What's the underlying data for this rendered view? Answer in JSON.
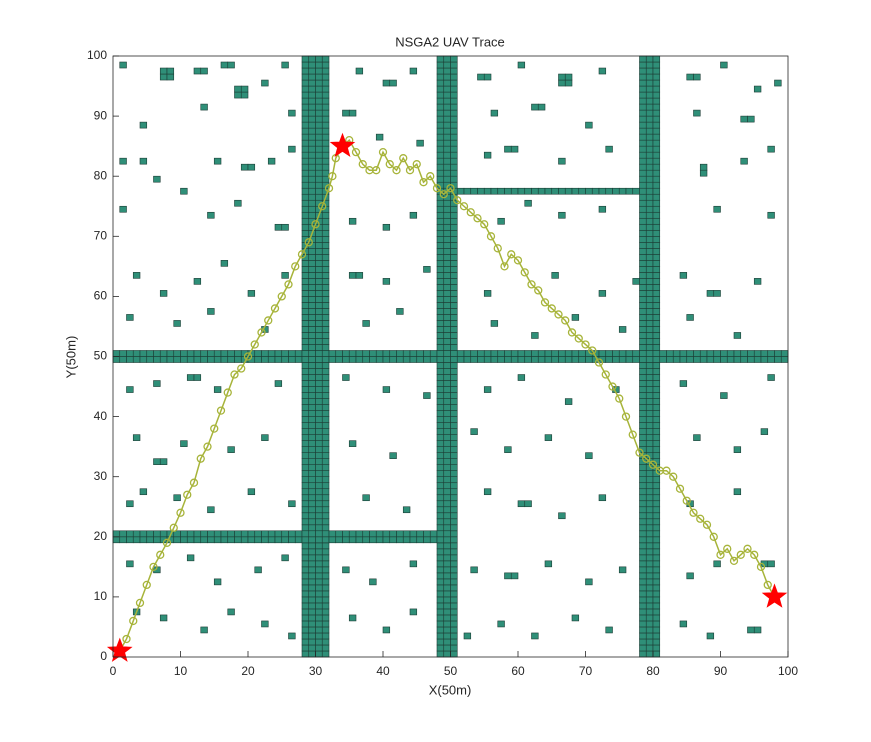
{
  "chart_data": {
    "type": "trace",
    "title": "NSGA2 UAV Trace",
    "x_label": "X(50m)",
    "y_label": "Y(50m)",
    "xlim": [
      0,
      100
    ],
    "ylim": [
      0,
      100
    ],
    "xticks": [
      0,
      10,
      20,
      30,
      40,
      50,
      60,
      70,
      80,
      90,
      100
    ],
    "yticks": [
      0,
      10,
      20,
      30,
      40,
      50,
      60,
      70,
      80,
      90,
      100
    ],
    "obstacles": {
      "color": "#2f8f78",
      "edge_color": "#1d3d35",
      "cells": [
        [
          28,
          0,
          4,
          100
        ],
        [
          48,
          0,
          3,
          100
        ],
        [
          78,
          0,
          3,
          100
        ],
        [
          0,
          49,
          100,
          2
        ],
        [
          0,
          19,
          50,
          2
        ],
        [
          51,
          77,
          27,
          1
        ],
        [
          1,
          98,
          1,
          1
        ],
        [
          7,
          96,
          2,
          2
        ],
        [
          12,
          97,
          2,
          1
        ],
        [
          16,
          98,
          2,
          1
        ],
        [
          18,
          93,
          2,
          2
        ],
        [
          22,
          95,
          1,
          1
        ],
        [
          25,
          98,
          1,
          1
        ],
        [
          36,
          97,
          1,
          1
        ],
        [
          40,
          95,
          2,
          1
        ],
        [
          44,
          97,
          1,
          1
        ],
        [
          54,
          96,
          2,
          1
        ],
        [
          60,
          98,
          1,
          1
        ],
        [
          66,
          95,
          2,
          2
        ],
        [
          72,
          97,
          1,
          1
        ],
        [
          85,
          96,
          2,
          1
        ],
        [
          90,
          98,
          1,
          1
        ],
        [
          95,
          94,
          1,
          1
        ],
        [
          98,
          95,
          1,
          1
        ],
        [
          13,
          91,
          1,
          1
        ],
        [
          4,
          88,
          1,
          1
        ],
        [
          26,
          90,
          1,
          1
        ],
        [
          34,
          90,
          2,
          1
        ],
        [
          56,
          90,
          1,
          1
        ],
        [
          62,
          91,
          2,
          1
        ],
        [
          70,
          88,
          1,
          1
        ],
        [
          86,
          90,
          1,
          1
        ],
        [
          93,
          89,
          2,
          1
        ],
        [
          1,
          82,
          1,
          1
        ],
        [
          4,
          82,
          1,
          1
        ],
        [
          15,
          82,
          1,
          1
        ],
        [
          19,
          81,
          2,
          1
        ],
        [
          23,
          82,
          1,
          1
        ],
        [
          26,
          84,
          1,
          1
        ],
        [
          39,
          86,
          1,
          1
        ],
        [
          45,
          85,
          1,
          1
        ],
        [
          55,
          83,
          1,
          1
        ],
        [
          58,
          84,
          2,
          1
        ],
        [
          66,
          82,
          1,
          1
        ],
        [
          73,
          84,
          1,
          1
        ],
        [
          87,
          80,
          1,
          2
        ],
        [
          93,
          82,
          1,
          1
        ],
        [
          97,
          84,
          1,
          1
        ],
        [
          1,
          74,
          1,
          1
        ],
        [
          6,
          79,
          1,
          1
        ],
        [
          10,
          77,
          1,
          1
        ],
        [
          14,
          73,
          1,
          1
        ],
        [
          18,
          75,
          1,
          1
        ],
        [
          24,
          71,
          2,
          1
        ],
        [
          35,
          72,
          1,
          1
        ],
        [
          40,
          71,
          1,
          1
        ],
        [
          44,
          73,
          1,
          1
        ],
        [
          57,
          72,
          1,
          1
        ],
        [
          61,
          75,
          1,
          1
        ],
        [
          66,
          73,
          1,
          1
        ],
        [
          72,
          74,
          1,
          1
        ],
        [
          89,
          74,
          1,
          1
        ],
        [
          97,
          73,
          1,
          1
        ],
        [
          3,
          63,
          1,
          1
        ],
        [
          7,
          60,
          1,
          1
        ],
        [
          12,
          62,
          1,
          1
        ],
        [
          16,
          65,
          1,
          1
        ],
        [
          20,
          60,
          1,
          1
        ],
        [
          25,
          63,
          1,
          1
        ],
        [
          35,
          63,
          2,
          1
        ],
        [
          40,
          62,
          1,
          1
        ],
        [
          46,
          64,
          1,
          1
        ],
        [
          55,
          60,
          1,
          1
        ],
        [
          65,
          63,
          1,
          1
        ],
        [
          72,
          60,
          1,
          1
        ],
        [
          77,
          62,
          1,
          1
        ],
        [
          84,
          63,
          1,
          1
        ],
        [
          88,
          60,
          2,
          1
        ],
        [
          95,
          62,
          1,
          1
        ],
        [
          2,
          56,
          1,
          1
        ],
        [
          9,
          55,
          1,
          1
        ],
        [
          14,
          57,
          1,
          1
        ],
        [
          22,
          54,
          1,
          1
        ],
        [
          37,
          55,
          1,
          1
        ],
        [
          42,
          57,
          1,
          1
        ],
        [
          56,
          55,
          1,
          1
        ],
        [
          62,
          53,
          1,
          1
        ],
        [
          68,
          56,
          1,
          1
        ],
        [
          75,
          54,
          1,
          1
        ],
        [
          85,
          56,
          1,
          1
        ],
        [
          92,
          53,
          1,
          1
        ],
        [
          2,
          44,
          1,
          1
        ],
        [
          6,
          45,
          1,
          1
        ],
        [
          11,
          46,
          2,
          1
        ],
        [
          15,
          44,
          1,
          1
        ],
        [
          24,
          45,
          1,
          1
        ],
        [
          34,
          46,
          1,
          1
        ],
        [
          40,
          44,
          1,
          1
        ],
        [
          46,
          43,
          1,
          1
        ],
        [
          55,
          44,
          1,
          1
        ],
        [
          60,
          46,
          1,
          1
        ],
        [
          67,
          42,
          1,
          1
        ],
        [
          74,
          44,
          1,
          1
        ],
        [
          84,
          45,
          1,
          1
        ],
        [
          90,
          43,
          1,
          1
        ],
        [
          97,
          46,
          1,
          1
        ],
        [
          3,
          36,
          1,
          1
        ],
        [
          6,
          32,
          2,
          1
        ],
        [
          10,
          35,
          1,
          1
        ],
        [
          17,
          34,
          1,
          1
        ],
        [
          22,
          36,
          1,
          1
        ],
        [
          35,
          35,
          1,
          1
        ],
        [
          41,
          33,
          1,
          1
        ],
        [
          53,
          37,
          1,
          1
        ],
        [
          58,
          34,
          1,
          1
        ],
        [
          64,
          36,
          1,
          1
        ],
        [
          70,
          33,
          1,
          1
        ],
        [
          86,
          36,
          1,
          1
        ],
        [
          92,
          34,
          1,
          1
        ],
        [
          96,
          37,
          1,
          1
        ],
        [
          2,
          25,
          1,
          1
        ],
        [
          4,
          27,
          1,
          1
        ],
        [
          9,
          26,
          1,
          1
        ],
        [
          14,
          24,
          1,
          1
        ],
        [
          20,
          27,
          1,
          1
        ],
        [
          26,
          25,
          1,
          1
        ],
        [
          37,
          26,
          1,
          1
        ],
        [
          43,
          24,
          1,
          1
        ],
        [
          55,
          27,
          1,
          1
        ],
        [
          60,
          25,
          2,
          1
        ],
        [
          66,
          23,
          1,
          1
        ],
        [
          72,
          26,
          1,
          1
        ],
        [
          85,
          25,
          1,
          1
        ],
        [
          92,
          27,
          1,
          1
        ],
        [
          2,
          15,
          1,
          1
        ],
        [
          6,
          14,
          1,
          1
        ],
        [
          11,
          16,
          1,
          1
        ],
        [
          15,
          12,
          1,
          1
        ],
        [
          21,
          14,
          1,
          1
        ],
        [
          25,
          16,
          1,
          1
        ],
        [
          34,
          14,
          1,
          1
        ],
        [
          38,
          12,
          1,
          1
        ],
        [
          44,
          15,
          1,
          1
        ],
        [
          53,
          14,
          1,
          1
        ],
        [
          58,
          13,
          2,
          1
        ],
        [
          64,
          15,
          1,
          1
        ],
        [
          70,
          12,
          1,
          1
        ],
        [
          75,
          14,
          1,
          1
        ],
        [
          85,
          13,
          1,
          1
        ],
        [
          89,
          15,
          1,
          1
        ],
        [
          96,
          15,
          2,
          1
        ],
        [
          3,
          7,
          1,
          1
        ],
        [
          7,
          6,
          1,
          1
        ],
        [
          13,
          4,
          1,
          1
        ],
        [
          17,
          7,
          1,
          1
        ],
        [
          22,
          5,
          1,
          1
        ],
        [
          26,
          3,
          1,
          1
        ],
        [
          35,
          6,
          1,
          1
        ],
        [
          40,
          4,
          1,
          1
        ],
        [
          44,
          7,
          1,
          1
        ],
        [
          52,
          3,
          1,
          1
        ],
        [
          57,
          5,
          1,
          1
        ],
        [
          62,
          3,
          1,
          1
        ],
        [
          68,
          6,
          1,
          1
        ],
        [
          73,
          4,
          1,
          1
        ],
        [
          84,
          5,
          1,
          1
        ],
        [
          88,
          3,
          1,
          1
        ],
        [
          94,
          4,
          2,
          1
        ]
      ]
    },
    "path": {
      "color": "#a7b43a",
      "x": [
        1,
        2,
        3,
        4,
        5,
        6,
        7,
        8,
        9,
        10,
        11,
        12,
        13,
        14,
        15,
        16,
        17,
        18,
        19,
        20,
        21,
        22,
        23,
        24,
        25,
        26,
        27,
        28,
        29,
        30,
        31,
        32,
        32.5,
        33,
        34,
        35,
        36,
        37,
        38,
        39,
        40,
        41,
        42,
        43,
        44,
        45,
        46,
        47,
        48,
        49,
        50,
        51,
        52,
        53,
        54,
        55,
        56,
        57,
        58,
        59,
        60,
        61,
        62,
        63,
        64,
        65,
        66,
        67,
        68,
        69,
        70,
        71,
        72,
        73,
        74,
        75,
        76,
        77,
        78,
        79,
        80,
        81,
        82,
        83,
        84,
        85,
        86,
        87,
        88,
        89,
        90,
        91,
        92,
        93,
        94,
        95,
        96,
        97,
        98
      ],
      "y": [
        1,
        3,
        6,
        9,
        12,
        15,
        17,
        19,
        21.5,
        24,
        27,
        29,
        33,
        35,
        38,
        41,
        44,
        47,
        48,
        50,
        52,
        54,
        56,
        58,
        60,
        62,
        65,
        67,
        69,
        72,
        75,
        78,
        80,
        83,
        85,
        86,
        84,
        82,
        81,
        81,
        84,
        82,
        81,
        83,
        81,
        82,
        79,
        80,
        78,
        77,
        78,
        76,
        75,
        74,
        73,
        72,
        70,
        68,
        65,
        67,
        66,
        64,
        62,
        61,
        59,
        58,
        57,
        56,
        54,
        53,
        52,
        51,
        49,
        47,
        45,
        43,
        40,
        37,
        34,
        33,
        32,
        31,
        31,
        30,
        28,
        26,
        24,
        23,
        22,
        20,
        17,
        18,
        16,
        17,
        18,
        17,
        15,
        12,
        10
      ]
    },
    "waypoints": {
      "color": "#ff0000",
      "x": [
        1,
        34,
        98
      ],
      "y": [
        1,
        85,
        10
      ]
    }
  }
}
